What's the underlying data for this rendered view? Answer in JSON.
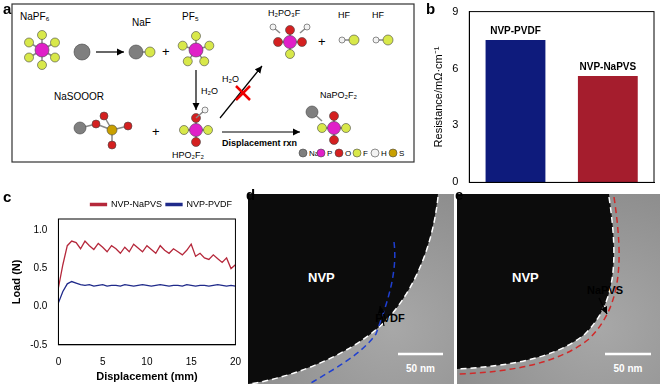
{
  "chart_data": [
    {
      "panel": "b",
      "type": "bar",
      "categories": [
        "NVP-PVDF",
        "NVP-NaPVS"
      ],
      "values": [
        7.5,
        5.6
      ],
      "colors": [
        "#0e1b7c",
        "#a51d2d"
      ],
      "ylabel": "Resistance/mΩ·cm⁻¹",
      "ylim": [
        0,
        9
      ],
      "yticks": [
        0,
        3,
        6,
        9
      ],
      "tick_labels": "y",
      "grid": false
    },
    {
      "panel": "c",
      "type": "line",
      "xlabel": "Displacement (mm)",
      "ylabel": "Load (N)",
      "xlim": [
        0,
        20
      ],
      "xticks": [
        0,
        5,
        10,
        15,
        20
      ],
      "ylim": [
        -0.5,
        1.15
      ],
      "yticks": [
        -0.5,
        {
          "value": 0,
          "label": "0.0"
        },
        {
          "value": 0.5,
          "label": "0.5"
        },
        {
          "value": 1,
          "label": "1.0"
        }
      ],
      "legend": "top-right",
      "grid": false,
      "x": [
        0,
        0.5,
        1,
        1.5,
        2,
        2.5,
        3,
        3.5,
        4,
        4.5,
        5,
        5.5,
        6,
        6.5,
        7,
        7.5,
        8,
        8.5,
        9,
        9.5,
        10,
        10.5,
        11,
        11.5,
        12,
        12.5,
        13,
        13.5,
        14,
        14.5,
        15,
        15.5,
        16,
        16.5,
        17,
        17.5,
        18,
        18.5,
        19,
        19.5,
        20
      ],
      "series": [
        {
          "name": "NVP-NaPVS",
          "color": "#b5283b",
          "values": [
            0.25,
            0.55,
            0.8,
            0.86,
            0.84,
            0.76,
            0.86,
            0.8,
            0.75,
            0.83,
            0.78,
            0.72,
            0.8,
            0.76,
            0.7,
            0.78,
            0.72,
            0.82,
            0.77,
            0.72,
            0.8,
            0.75,
            0.7,
            0.8,
            0.74,
            0.7,
            0.76,
            0.72,
            0.68,
            0.74,
            0.82,
            0.66,
            0.7,
            0.64,
            0.62,
            0.68,
            0.63,
            0.58,
            0.64,
            0.5,
            0.55
          ]
        },
        {
          "name": "NVP-PVDF",
          "color": "#1f2a8a",
          "values": [
            0.05,
            0.2,
            0.3,
            0.33,
            0.31,
            0.29,
            0.28,
            0.29,
            0.27,
            0.28,
            0.29,
            0.27,
            0.28,
            0.28,
            0.27,
            0.29,
            0.28,
            0.27,
            0.28,
            0.29,
            0.28,
            0.27,
            0.28,
            0.29,
            0.28,
            0.27,
            0.28,
            0.28,
            0.27,
            0.29,
            0.28,
            0.27,
            0.28,
            0.28,
            0.27,
            0.28,
            0.29,
            0.28,
            0.27,
            0.28,
            0.27
          ]
        }
      ]
    }
  ],
  "diagram": {
    "panel": "a",
    "molecules": [
      "NaPF₆",
      "NaF",
      "PF₅",
      "NaSOOOR",
      "HPO₂F₂",
      "H₂PO₃F",
      "HF",
      "HF",
      "NaPO₂F₂"
    ],
    "water": "H₂O",
    "plus": "+",
    "reaction": "Displacement rxn",
    "legend": [
      {
        "label": "Na",
        "color": "#7f7f7f"
      },
      {
        "label": "P",
        "color": "#e020c8"
      },
      {
        "label": "O",
        "color": "#d42020"
      },
      {
        "label": "F",
        "color": "#d8e84a"
      },
      {
        "label": "H",
        "color": "#f2f2f2"
      },
      {
        "label": "S",
        "color": "#c9a000"
      }
    ]
  },
  "images": [
    {
      "panel": "d",
      "regions": [
        "NVP",
        "PVDF"
      ],
      "scale_bar": "50 nm",
      "color": "#1f3fd0"
    },
    {
      "panel": "e",
      "regions": [
        "NVP",
        "NaPVS"
      ],
      "scale_bar": "50 nm",
      "color": "#d02a2a"
    }
  ]
}
